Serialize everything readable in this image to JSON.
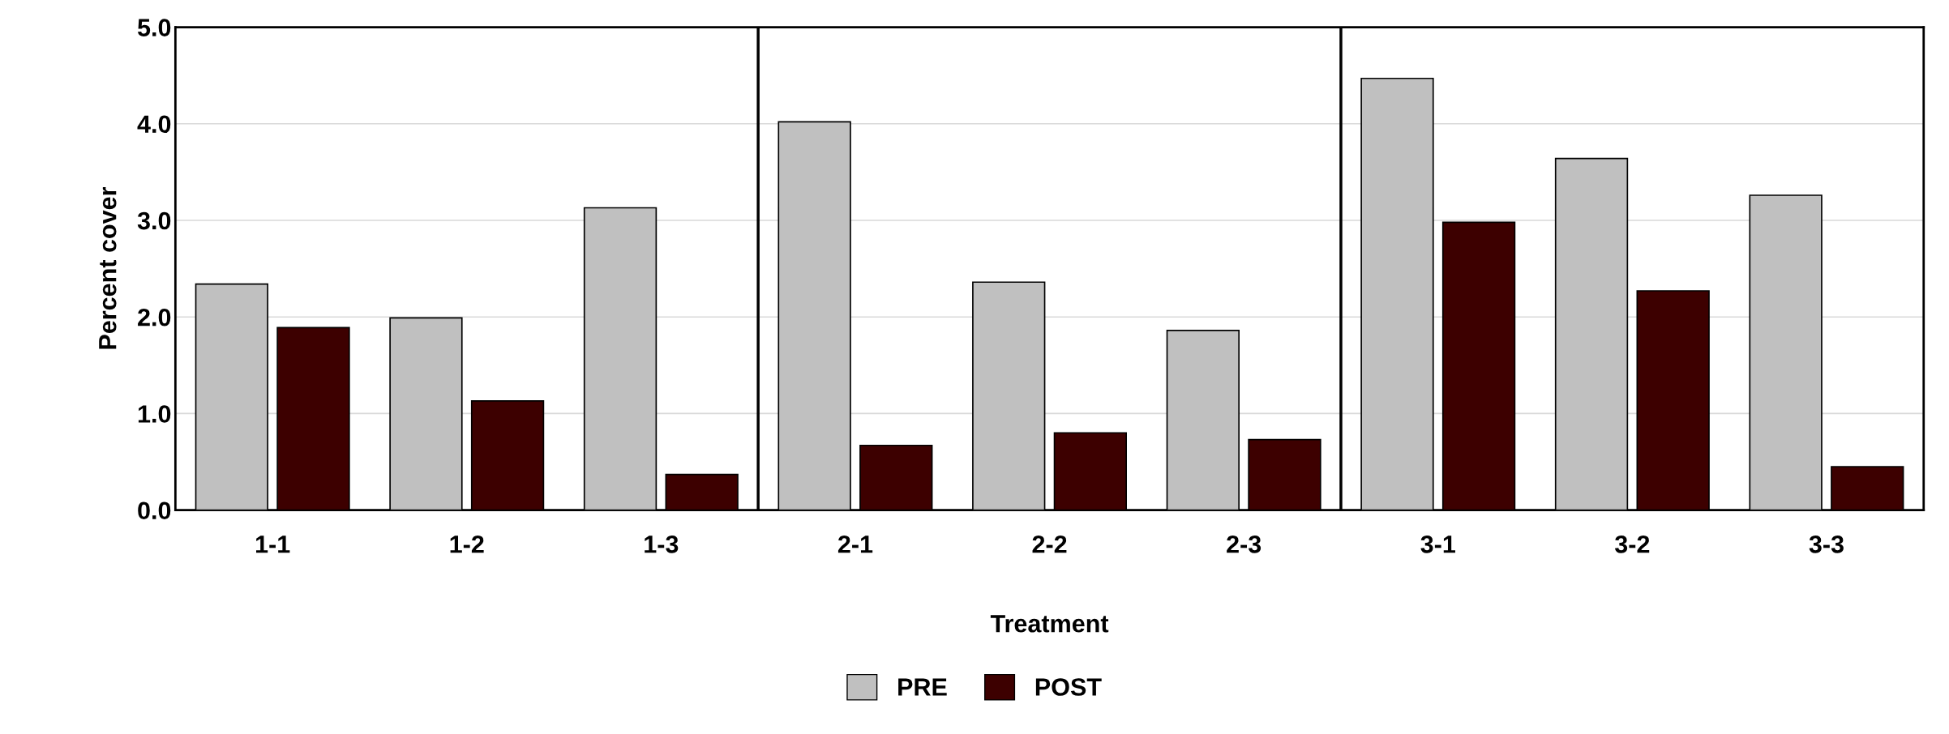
{
  "chart_data": {
    "type": "bar",
    "xlabel": "Treatment",
    "ylabel": "Percent cover",
    "categories": [
      "1-1",
      "1-2",
      "1-3",
      "2-1",
      "2-2",
      "2-3",
      "3-1",
      "3-2",
      "3-3"
    ],
    "series": [
      {
        "name": "PRE",
        "color": "#c0c0c0",
        "values": [
          2.34,
          1.99,
          3.13,
          4.02,
          2.36,
          1.86,
          4.47,
          3.64,
          3.26
        ]
      },
      {
        "name": "POST",
        "color": "#3d0000",
        "values": [
          1.89,
          1.13,
          0.37,
          0.67,
          0.8,
          0.73,
          2.98,
          2.27,
          0.45
        ]
      }
    ],
    "ylim": [
      0,
      5
    ],
    "yticks": [
      {
        "value": 0,
        "label": "0.0"
      },
      {
        "value": 1,
        "label": "1.0"
      },
      {
        "value": 2,
        "label": "2.0"
      },
      {
        "value": 3,
        "label": "3.0"
      },
      {
        "value": 4,
        "label": "4.0"
      },
      {
        "value": 5,
        "label": "5.0"
      }
    ],
    "grid": "y",
    "legend": "bottom"
  }
}
